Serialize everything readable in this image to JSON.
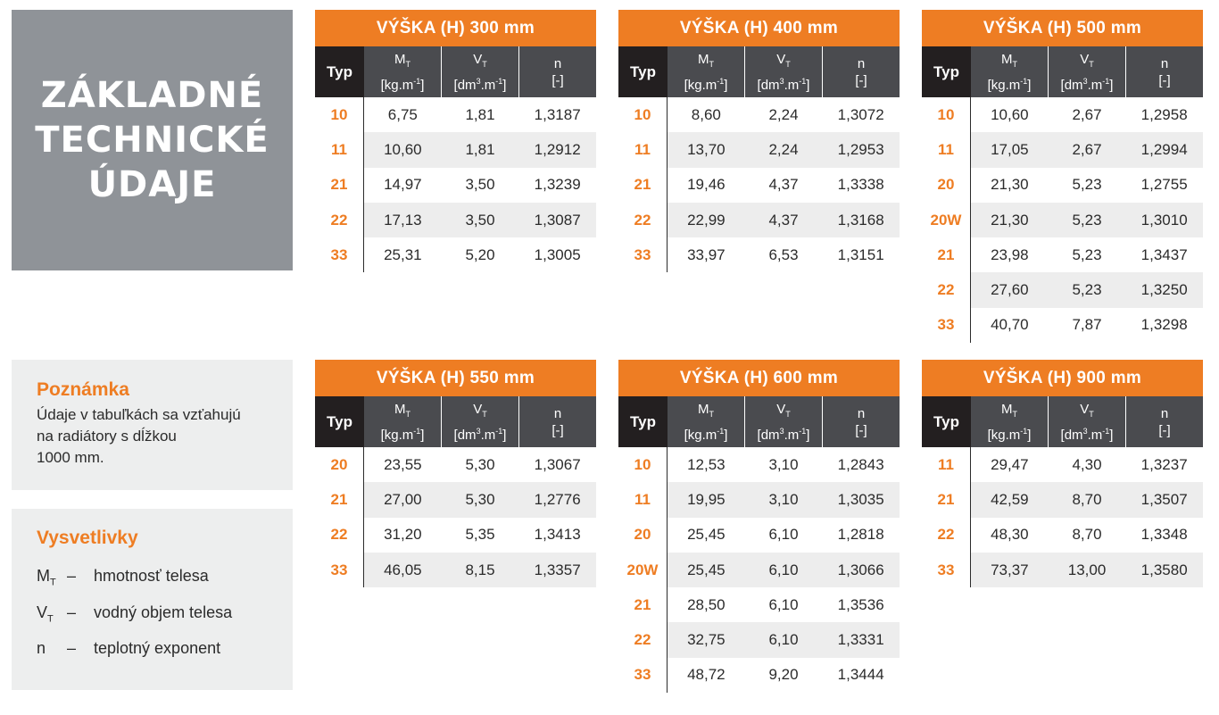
{
  "title": {
    "line1": "ZÁKLADNÉ",
    "line2": "TECHNICKÉ",
    "line3": "ÚDAJE"
  },
  "note": {
    "heading": "Poznámka",
    "lines": [
      "Údaje v tabuľkách sa vzťahujú",
      "na radiátory s dĺžkou",
      "1000 mm."
    ]
  },
  "legend": {
    "heading": "Vysvetlivky",
    "items": [
      {
        "symbol": "M",
        "sub": "T",
        "dash": "–",
        "text": "hmotnosť telesa"
      },
      {
        "symbol": "V",
        "sub": "T",
        "dash": "–",
        "text": "vodný objem telesa"
      },
      {
        "symbol": "n",
        "sub": "",
        "dash": "–",
        "text": "teplotný exponent"
      }
    ]
  },
  "columns": {
    "typ": "Typ",
    "mt_sym": "M",
    "mt_sub": "T",
    "mt_unit": "[kg.m",
    "mt_exp": "-1",
    "mt_close": "]",
    "vt_sym": "V",
    "vt_sub": "T",
    "vt_unit_a": "[dm",
    "vt_exp3": "3",
    "vt_unit_b": ".m",
    "vt_exp": "-1",
    "vt_close": "]",
    "n_sym": "n",
    "n_unit": "[-]"
  },
  "tables": [
    {
      "title": "VÝŠKA (H) 300 mm",
      "rows": [
        [
          "10",
          "6,75",
          "1,81",
          "1,3187"
        ],
        [
          "11",
          "10,60",
          "1,81",
          "1,2912"
        ],
        [
          "21",
          "14,97",
          "3,50",
          "1,3239"
        ],
        [
          "22",
          "17,13",
          "3,50",
          "1,3087"
        ],
        [
          "33",
          "25,31",
          "5,20",
          "1,3005"
        ]
      ]
    },
    {
      "title": "VÝŠKA (H) 400 mm",
      "rows": [
        [
          "10",
          "8,60",
          "2,24",
          "1,3072"
        ],
        [
          "11",
          "13,70",
          "2,24",
          "1,2953"
        ],
        [
          "21",
          "19,46",
          "4,37",
          "1,3338"
        ],
        [
          "22",
          "22,99",
          "4,37",
          "1,3168"
        ],
        [
          "33",
          "33,97",
          "6,53",
          "1,3151"
        ]
      ]
    },
    {
      "title": "VÝŠKA (H) 500 mm",
      "rows": [
        [
          "10",
          "10,60",
          "2,67",
          "1,2958"
        ],
        [
          "11",
          "17,05",
          "2,67",
          "1,2994"
        ],
        [
          "20",
          "21,30",
          "5,23",
          "1,2755"
        ],
        [
          "20W",
          "21,30",
          "5,23",
          "1,3010"
        ],
        [
          "21",
          "23,98",
          "5,23",
          "1,3437"
        ],
        [
          "22",
          "27,60",
          "5,23",
          "1,3250"
        ],
        [
          "33",
          "40,70",
          "7,87",
          "1,3298"
        ]
      ]
    },
    {
      "title": "VÝŠKA (H) 550 mm",
      "rows": [
        [
          "20",
          "23,55",
          "5,30",
          "1,3067"
        ],
        [
          "21",
          "27,00",
          "5,30",
          "1,2776"
        ],
        [
          "22",
          "31,20",
          "5,35",
          "1,3413"
        ],
        [
          "33",
          "46,05",
          "8,15",
          "1,3357"
        ]
      ]
    },
    {
      "title": "VÝŠKA (H) 600 mm",
      "rows": [
        [
          "10",
          "12,53",
          "3,10",
          "1,2843"
        ],
        [
          "11",
          "19,95",
          "3,10",
          "1,3035"
        ],
        [
          "20",
          "25,45",
          "6,10",
          "1,2818"
        ],
        [
          "20W",
          "25,45",
          "6,10",
          "1,3066"
        ],
        [
          "21",
          "28,50",
          "6,10",
          "1,3536"
        ],
        [
          "22",
          "32,75",
          "6,10",
          "1,3331"
        ],
        [
          "33",
          "48,72",
          "9,20",
          "1,3444"
        ]
      ]
    },
    {
      "title": "VÝŠKA (H) 900 mm",
      "rows": [
        [
          "11",
          "29,47",
          "4,30",
          "1,3237"
        ],
        [
          "21",
          "42,59",
          "8,70",
          "1,3507"
        ],
        [
          "22",
          "48,30",
          "8,70",
          "1,3348"
        ],
        [
          "33",
          "73,37",
          "13,00",
          "1,3580"
        ]
      ]
    }
  ]
}
